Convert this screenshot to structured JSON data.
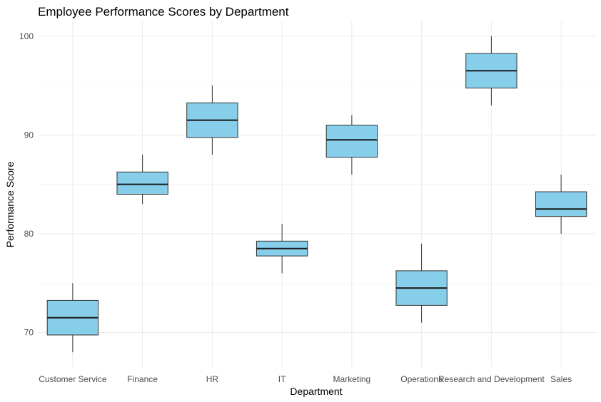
{
  "chart_data": {
    "type": "boxplot",
    "title": "Employee Performance Scores by Department",
    "xlabel": "Department",
    "ylabel": "Performance Score",
    "ylim": [
      66.5,
      101.5
    ],
    "y_ticks": [
      70,
      80,
      90,
      100
    ],
    "grid": true,
    "box_color": "#87CEEB",
    "line_color": "#333333",
    "categories": [
      "Customer Service",
      "Finance",
      "HR",
      "IT",
      "Marketing",
      "Operations",
      "Research and Development",
      "Sales"
    ],
    "boxes": [
      {
        "category": "Customer Service",
        "min": 68,
        "q1": 69.75,
        "median": 71.5,
        "q3": 73.25,
        "max": 75
      },
      {
        "category": "Finance",
        "min": 83,
        "q1": 84,
        "median": 85,
        "q3": 86.25,
        "max": 88
      },
      {
        "category": "HR",
        "min": 88,
        "q1": 89.75,
        "median": 91.5,
        "q3": 93.25,
        "max": 95
      },
      {
        "category": "IT",
        "min": 76,
        "q1": 77.75,
        "median": 78.5,
        "q3": 79.25,
        "max": 81
      },
      {
        "category": "Marketing",
        "min": 86,
        "q1": 87.75,
        "median": 89.5,
        "q3": 91,
        "max": 92
      },
      {
        "category": "Operations",
        "min": 71,
        "q1": 72.75,
        "median": 74.5,
        "q3": 76.25,
        "max": 79
      },
      {
        "category": "Research and Development",
        "min": 93,
        "q1": 94.75,
        "median": 96.5,
        "q3": 98.25,
        "max": 100
      },
      {
        "category": "Sales",
        "min": 80,
        "q1": 81.75,
        "median": 82.5,
        "q3": 84.25,
        "max": 86
      }
    ]
  }
}
